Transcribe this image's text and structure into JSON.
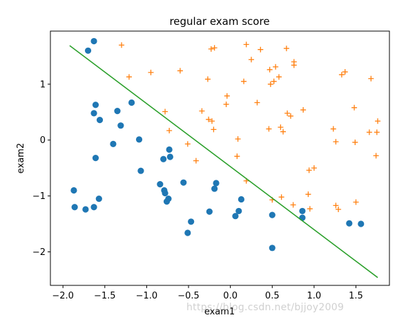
{
  "chart_data": {
    "type": "scatter",
    "title": "regular exam score",
    "xlabel": "exam1",
    "ylabel": "exam2",
    "xlim": [
      -2.15,
      1.9
    ],
    "ylim": [
      -2.6,
      1.95
    ],
    "xticks": [
      -2.0,
      -1.5,
      -1.0,
      -0.5,
      0.0,
      0.5,
      1.0,
      1.5
    ],
    "xtick_labels": [
      "−2.0",
      "−1.5",
      "−1.0",
      "−0.5",
      "0.0",
      "0.5",
      "1.0",
      "1.5"
    ],
    "yticks": [
      -2,
      -1,
      0,
      1
    ],
    "ytick_labels": [
      "−2",
      "−1",
      "0",
      "1"
    ],
    "grid": false,
    "colors": {
      "dots": "#1f77b4",
      "plus": "#ff7f0e",
      "line": "#2ca02c"
    },
    "series": [
      {
        "marker": "circle",
        "color": "#1f77b4",
        "points": [
          [
            -1.63,
            1.77
          ],
          [
            -1.7,
            1.6
          ],
          [
            -1.61,
            0.63
          ],
          [
            -1.63,
            0.48
          ],
          [
            -1.56,
            0.36
          ],
          [
            -1.35,
            0.52
          ],
          [
            -1.18,
            0.67
          ],
          [
            -1.31,
            0.26
          ],
          [
            -1.4,
            -0.07
          ],
          [
            -1.09,
            0.01
          ],
          [
            -1.61,
            -0.32
          ],
          [
            -1.87,
            -0.9
          ],
          [
            -1.86,
            -1.2
          ],
          [
            -1.73,
            -1.24
          ],
          [
            -1.63,
            -1.2
          ],
          [
            -1.57,
            -1.05
          ],
          [
            -1.07,
            -0.55
          ],
          [
            -0.8,
            -0.34
          ],
          [
            -0.73,
            -0.17
          ],
          [
            -0.72,
            -0.3
          ],
          [
            -0.84,
            -0.79
          ],
          [
            -0.79,
            -0.9
          ],
          [
            -0.78,
            -0.95
          ],
          [
            -0.76,
            -1.1
          ],
          [
            -0.74,
            -1.05
          ],
          [
            -0.56,
            -0.76
          ],
          [
            -0.47,
            -1.46
          ],
          [
            -0.51,
            -1.66
          ],
          [
            -0.25,
            -1.28
          ],
          [
            -0.19,
            -0.87
          ],
          [
            -0.17,
            -0.77
          ],
          [
            0.06,
            -1.36
          ],
          [
            0.1,
            -1.27
          ],
          [
            0.13,
            -1.06
          ],
          [
            0.5,
            -1.34
          ],
          [
            0.5,
            -1.93
          ],
          [
            0.86,
            -1.27
          ],
          [
            0.86,
            -1.39
          ],
          [
            1.42,
            -1.49
          ],
          [
            1.56,
            -1.5
          ]
        ]
      },
      {
        "marker": "plus",
        "color": "#ff7f0e",
        "points": [
          [
            -1.3,
            1.7
          ],
          [
            -1.21,
            1.13
          ],
          [
            -0.95,
            1.21
          ],
          [
            -0.6,
            1.24
          ],
          [
            -0.27,
            1.09
          ],
          [
            -0.23,
            1.63
          ],
          [
            -0.19,
            1.65
          ],
          [
            0.19,
            1.71
          ],
          [
            0.25,
            1.44
          ],
          [
            0.36,
            1.62
          ],
          [
            0.67,
            1.64
          ],
          [
            0.76,
            1.4
          ],
          [
            0.76,
            1.34
          ],
          [
            0.47,
            1.26
          ],
          [
            0.54,
            1.31
          ],
          [
            0.58,
            1.13
          ],
          [
            0.52,
            1.05
          ],
          [
            0.48,
            1.0
          ],
          [
            0.16,
            1.05
          ],
          [
            -0.04,
            0.79
          ],
          [
            -0.05,
            0.64
          ],
          [
            0.32,
            0.67
          ],
          [
            -0.78,
            0.51
          ],
          [
            -0.34,
            0.52
          ],
          [
            -0.26,
            0.37
          ],
          [
            -0.22,
            0.34
          ],
          [
            -0.2,
            0.19
          ],
          [
            -0.73,
            0.17
          ],
          [
            -0.51,
            -0.07
          ],
          [
            -0.41,
            -0.37
          ],
          [
            0.09,
            0.02
          ],
          [
            0.08,
            -0.29
          ],
          [
            0.19,
            -0.73
          ],
          [
            0.46,
            0.2
          ],
          [
            0.6,
            0.23
          ],
          [
            0.63,
            0.15
          ],
          [
            0.68,
            0.48
          ],
          [
            0.72,
            0.43
          ],
          [
            0.87,
            0.54
          ],
          [
            1.23,
            0.2
          ],
          [
            1.26,
            -0.03
          ],
          [
            1.48,
            0.58
          ],
          [
            1.49,
            -0.04
          ],
          [
            1.33,
            1.17
          ],
          [
            1.37,
            1.22
          ],
          [
            1.68,
            1.1
          ],
          [
            1.66,
            0.14
          ],
          [
            1.75,
            0.14
          ],
          [
            1.76,
            0.34
          ],
          [
            1.74,
            -0.28
          ],
          [
            0.94,
            -0.54
          ],
          [
            1.0,
            -0.5
          ],
          [
            0.93,
            -0.97
          ],
          [
            0.95,
            -1.23
          ],
          [
            0.75,
            -1.16
          ],
          [
            0.61,
            -1.02
          ],
          [
            0.5,
            -1.07
          ],
          [
            1.26,
            -1.17
          ],
          [
            1.29,
            -1.24
          ],
          [
            1.5,
            -1.11
          ]
        ]
      }
    ],
    "line": {
      "color": "#2ca02c",
      "x": [
        -1.92,
        1.76
      ],
      "y": [
        1.69,
        -2.46
      ]
    }
  },
  "watermark": "https://blog.csdn.net/bjjoy2009"
}
